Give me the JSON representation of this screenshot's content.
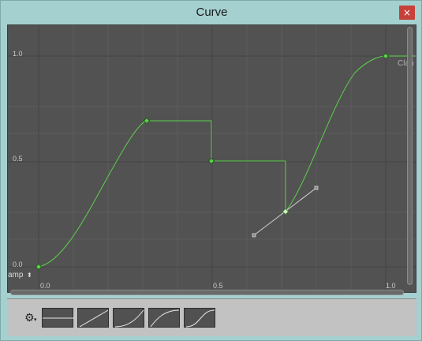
{
  "window": {
    "title": "Curve",
    "close_glyph": "×"
  },
  "curve_editor": {
    "y_axis_labels": [
      "1.0",
      "0.5",
      "0.0"
    ],
    "x_axis_labels": [
      "0.0",
      "0.5",
      "1.0"
    ],
    "pre_wrap_label": "amp",
    "post_wrap_label": "Clan",
    "curve_color": "#5bd14a",
    "background_color": "#525252",
    "keyframes": [
      {
        "time": 0.0,
        "value": 0.0
      },
      {
        "time": 0.31,
        "value": 0.69
      },
      {
        "time": 0.5,
        "value": 0.5
      },
      {
        "time": 0.71,
        "value": 0.27
      },
      {
        "time": 1.0,
        "value": 1.0
      }
    ]
  },
  "presets": {
    "settings_icon": "gear-icon",
    "items": [
      {
        "name": "preset-flat"
      },
      {
        "name": "preset-linear"
      },
      {
        "name": "preset-ease-in"
      },
      {
        "name": "preset-ease-out"
      },
      {
        "name": "preset-ease-in-out"
      }
    ]
  }
}
